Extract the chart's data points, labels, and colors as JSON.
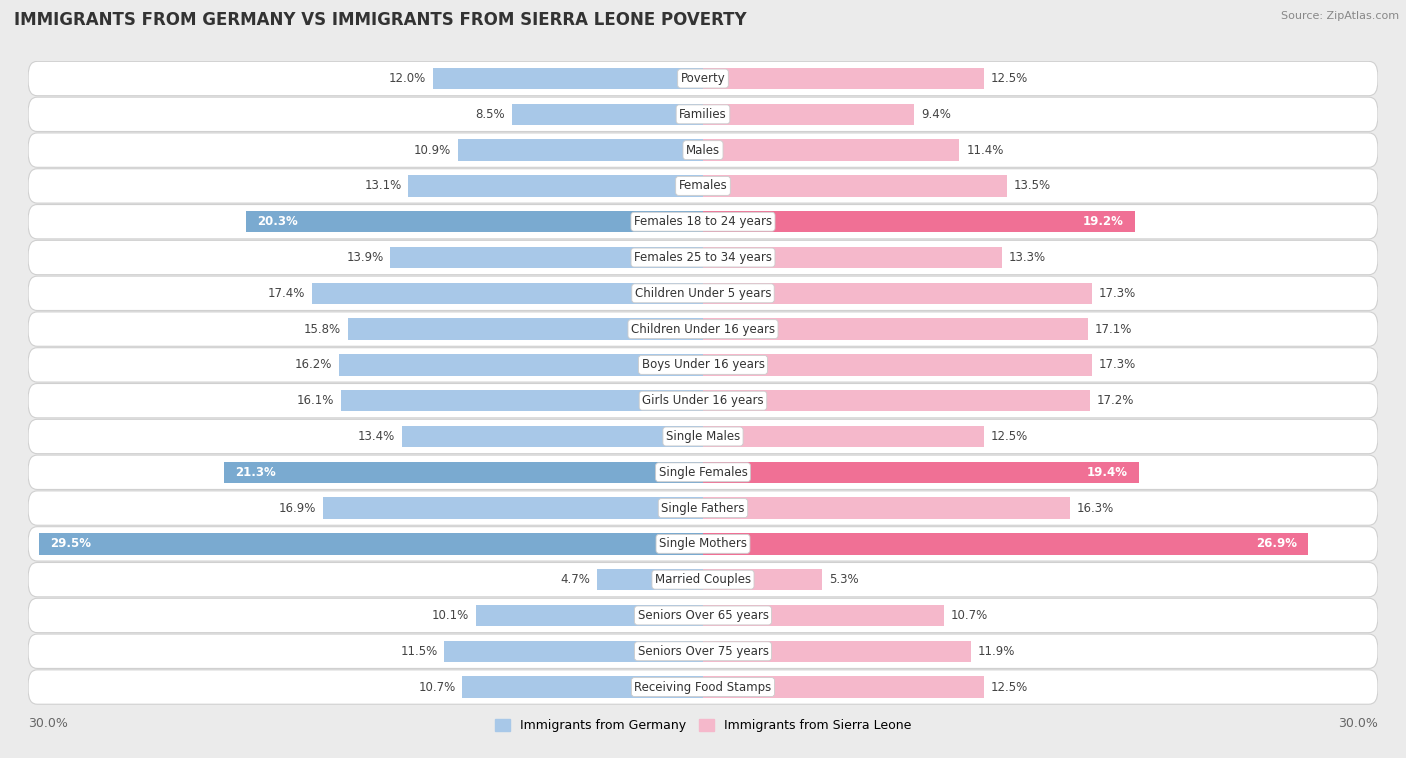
{
  "title": "IMMIGRANTS FROM GERMANY VS IMMIGRANTS FROM SIERRA LEONE POVERTY",
  "source": "Source: ZipAtlas.com",
  "categories": [
    "Poverty",
    "Families",
    "Males",
    "Females",
    "Females 18 to 24 years",
    "Females 25 to 34 years",
    "Children Under 5 years",
    "Children Under 16 years",
    "Boys Under 16 years",
    "Girls Under 16 years",
    "Single Males",
    "Single Females",
    "Single Fathers",
    "Single Mothers",
    "Married Couples",
    "Seniors Over 65 years",
    "Seniors Over 75 years",
    "Receiving Food Stamps"
  ],
  "germany_values": [
    12.0,
    8.5,
    10.9,
    13.1,
    20.3,
    13.9,
    17.4,
    15.8,
    16.2,
    16.1,
    13.4,
    21.3,
    16.9,
    29.5,
    4.7,
    10.1,
    11.5,
    10.7
  ],
  "sierraleone_values": [
    12.5,
    9.4,
    11.4,
    13.5,
    19.2,
    13.3,
    17.3,
    17.1,
    17.3,
    17.2,
    12.5,
    19.4,
    16.3,
    26.9,
    5.3,
    10.7,
    11.9,
    12.5
  ],
  "germany_color_normal": "#a8c8e8",
  "germany_color_highlight": "#7aaad0",
  "sierraleone_color_normal": "#f5b8cb",
  "sierraleone_color_highlight": "#f07095",
  "background_color": "#ebebeb",
  "bar_bg_color": "#ffffff",
  "axis_limit": 30.0,
  "label_fontsize": 8.5,
  "title_fontsize": 12,
  "bar_height": 0.6,
  "germany_highlight_threshold": 20.0,
  "sierraleone_highlight_threshold": 19.0
}
